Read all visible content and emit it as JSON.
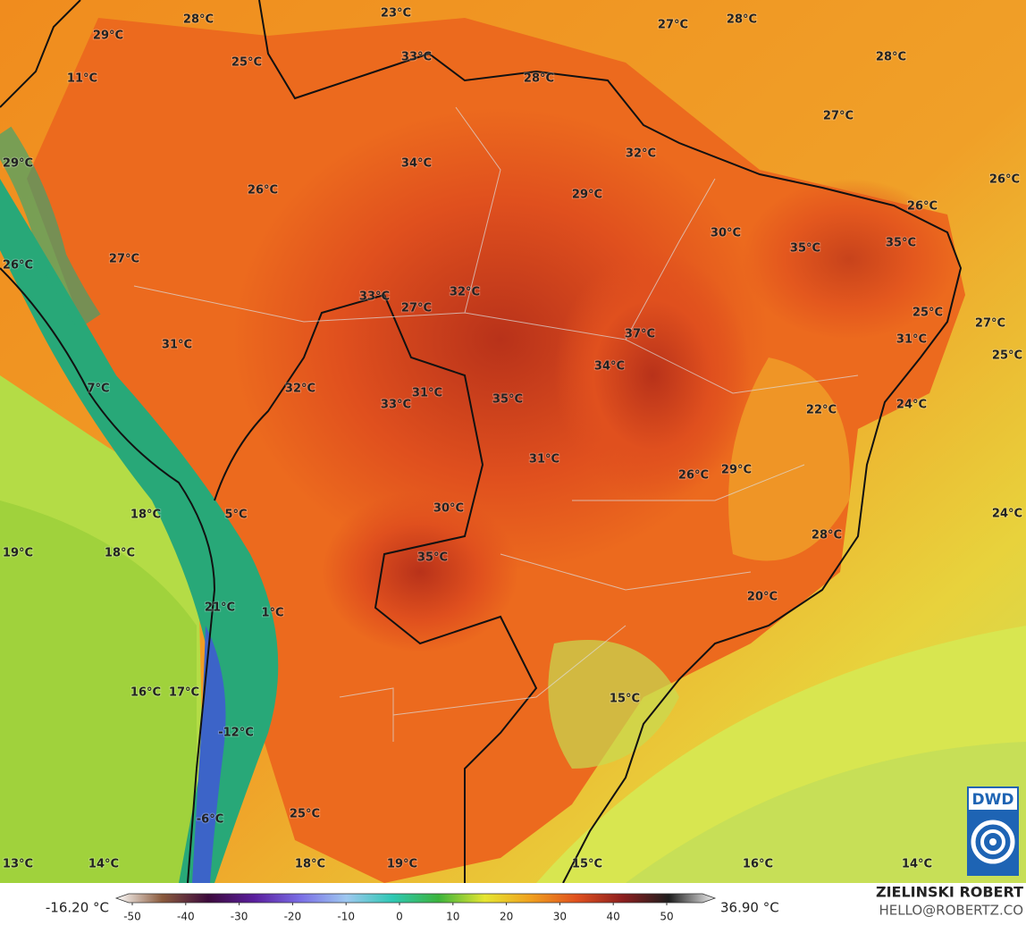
{
  "map": {
    "labels": [
      "28°C",
      "23°C",
      "27°C",
      "28°C",
      "29°C",
      "33°C",
      "25°C",
      "28°C",
      "11°C",
      "28°C",
      "27°C",
      "32°C",
      "29°C",
      "34°C",
      "26°C",
      "29°C",
      "26°C",
      "26°C",
      "30°C",
      "35°C",
      "35°C",
      "27°C",
      "26°C",
      "32°C",
      "33°C",
      "27°C",
      "25°C",
      "27°C",
      "37°C",
      "31°C",
      "31°C",
      "25°C",
      "34°C",
      "7°C",
      "32°C",
      "31°C",
      "33°C",
      "35°C",
      "22°C",
      "24°C",
      "31°C",
      "26°C",
      "29°C",
      "30°C",
      "18°C",
      "5°C",
      "24°C",
      "28°C",
      "19°C",
      "18°C",
      "35°C",
      "20°C",
      "21°C",
      "1°C",
      "15°C",
      "16°C",
      "17°C",
      "-12°C",
      "25°C",
      "-6°C",
      "13°C",
      "14°C",
      "18°C",
      "19°C",
      "15°C",
      "16°C",
      "14°C"
    ]
  },
  "colorbar": {
    "min_label": "-16.20 °C",
    "max_label": "36.90 °C",
    "ticks": [
      -50,
      -40,
      -30,
      -20,
      -10,
      0,
      10,
      20,
      30,
      40,
      50
    ],
    "colors": [
      "#ffffff",
      "#8a5a3c",
      "#3c0a3c",
      "#5a1e9e",
      "#7a6ee6",
      "#9ec8f0",
      "#2ec8b4",
      "#3cb43c",
      "#e6e632",
      "#f0a01e",
      "#e0501e",
      "#8c1e1e",
      "#1e1e1e",
      "#f0f0f0"
    ]
  },
  "credits": {
    "author": "ZIELINSKI ROBERT",
    "contact": "HELLO@ROBERTZ.CO",
    "logo": "DWD"
  }
}
